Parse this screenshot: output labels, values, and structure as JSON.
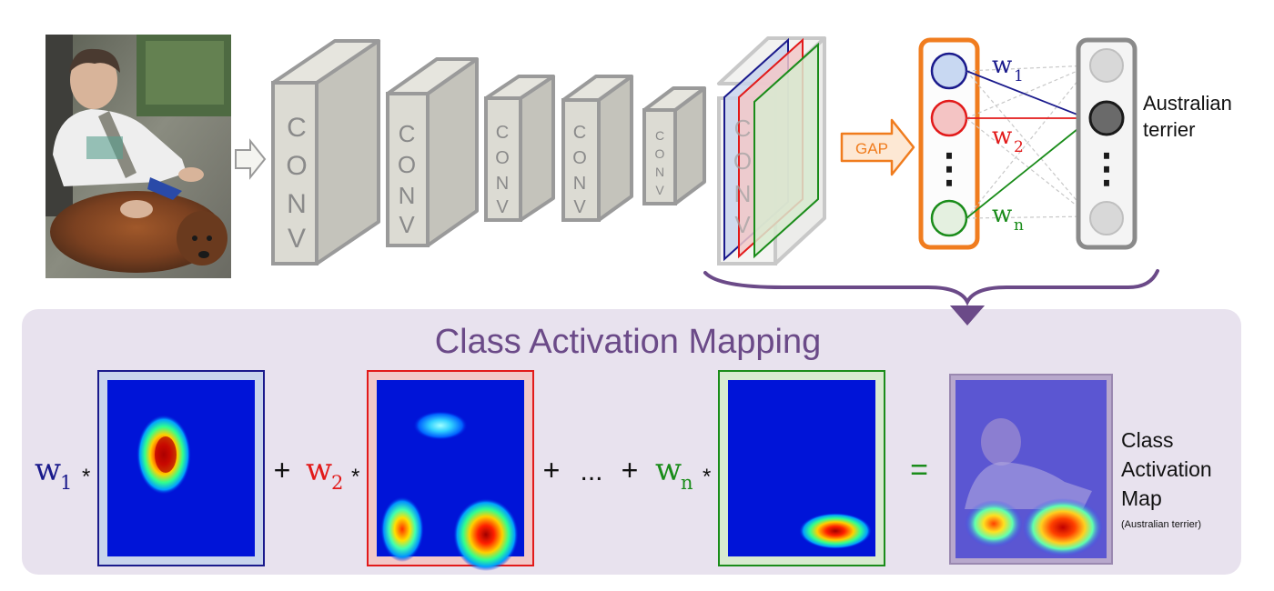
{
  "conv_label_letters": [
    "C",
    "O",
    "N",
    "V"
  ],
  "gap": {
    "label": "GAP"
  },
  "weights": {
    "w1": {
      "base": "w",
      "sub": "1"
    },
    "w2": {
      "base": "w",
      "sub": "2"
    },
    "wn": {
      "base": "w",
      "sub": "n"
    }
  },
  "ellipsis_vertical": "⋮",
  "output": {
    "label_line1": "Australian",
    "label_line2": "terrier"
  },
  "cam": {
    "title": "Class Activation Mapping",
    "times": "*",
    "plus": "+",
    "dots": "...",
    "equals": "=",
    "result_label_line1": "Class",
    "result_label_line2": "Activation",
    "result_label_line3": "Map",
    "result_caption": "(Australian terrier)"
  },
  "colors": {
    "w1": "#1a1a8c",
    "w2": "#e21a1a",
    "wn": "#1a8c1a",
    "gap": "#f07c1e",
    "cam_panel": "#e8e2ee",
    "cam_title": "#6b4a88",
    "arrow": "#6b4a88",
    "conv_face": "#dcdbd3",
    "conv_side": "#c4c3bb",
    "conv_border": "#9a9a9a"
  },
  "icons": {
    "input_arrow": "hollow-right-arrow-icon",
    "gap_arrow": "orange-right-arrow-icon",
    "bracket_arrow": "down-arrow-icon"
  }
}
